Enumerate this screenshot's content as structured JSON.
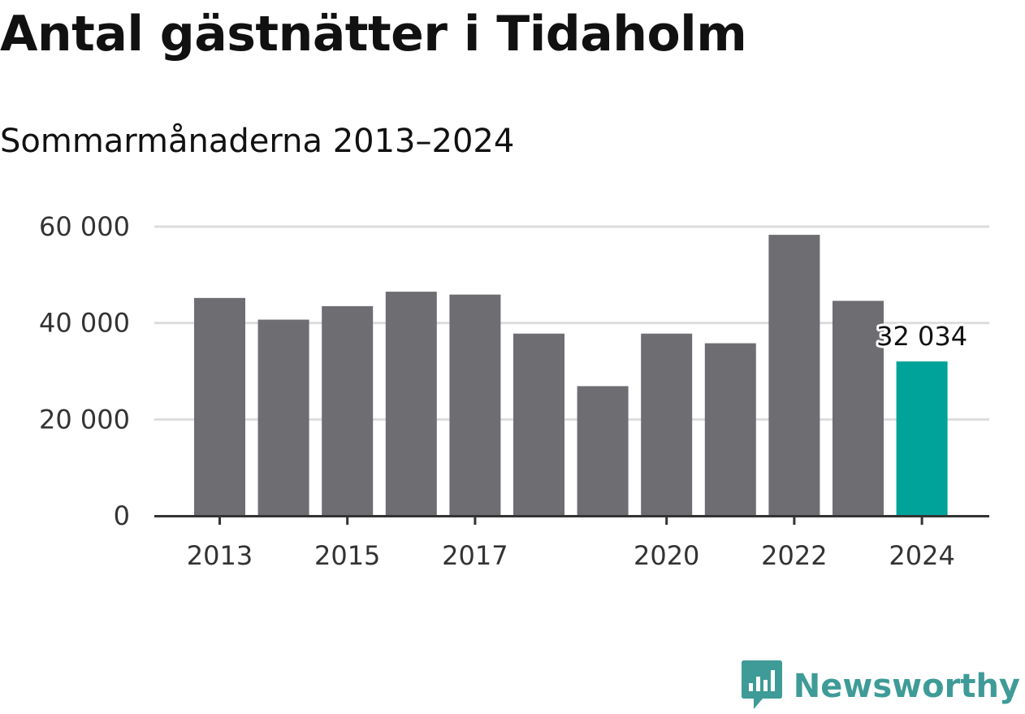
{
  "colors": {
    "bar": "#6e6d72",
    "highlight": "#00a399",
    "grid": "#dddddd",
    "axis": "#333333",
    "brand": "#3f9b97"
  },
  "brand": {
    "name": "Newsworthy",
    "icon": "bar-chart-speech-bubble-icon"
  },
  "chart_data": {
    "type": "bar",
    "title": "Antal gästnätter i Tidaholm",
    "subtitle": "Sommarmånaderna 2013–2024",
    "xlabel": "",
    "ylabel": "",
    "categories": [
      "2013",
      "2014",
      "2015",
      "2016",
      "2017",
      "2018",
      "2019",
      "2020",
      "2021",
      "2022",
      "2023",
      "2024"
    ],
    "values": [
      45200,
      40700,
      43500,
      46500,
      45900,
      37800,
      26900,
      37800,
      35800,
      58300,
      44600,
      32034
    ],
    "highlight_index": 11,
    "x_tick_labels": [
      "2013",
      "",
      "2015",
      "",
      "2017",
      "",
      "",
      "2020",
      "",
      "2022",
      "",
      "2024"
    ],
    "y_ticks": [
      0,
      20000,
      40000,
      60000
    ],
    "y_tick_labels": [
      "0",
      "20 000",
      "40 000",
      "60 000"
    ],
    "ylim": [
      0,
      60000
    ],
    "data_labels": [
      {
        "index": 11,
        "text": "32 034"
      }
    ],
    "grid": true,
    "legend": "none"
  }
}
